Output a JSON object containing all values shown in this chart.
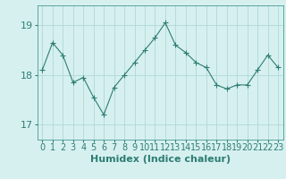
{
  "x": [
    0,
    1,
    2,
    3,
    4,
    5,
    6,
    7,
    8,
    9,
    10,
    11,
    12,
    13,
    14,
    15,
    16,
    17,
    18,
    19,
    20,
    21,
    22,
    23
  ],
  "y": [
    18.1,
    18.65,
    18.4,
    17.85,
    17.95,
    17.55,
    17.2,
    17.75,
    18.0,
    18.25,
    18.5,
    18.75,
    19.05,
    18.6,
    18.45,
    18.25,
    18.15,
    17.8,
    17.72,
    17.8,
    17.8,
    18.1,
    18.4,
    18.15
  ],
  "line_color": "#2e7d72",
  "marker": "+",
  "bg_color": "#d6f0f0",
  "grid_color": "#b0d8d8",
  "xlabel": "Humidex (Indice chaleur)",
  "yticks": [
    17,
    18,
    19
  ],
  "ylim": [
    16.7,
    19.4
  ],
  "xlim": [
    -0.5,
    23.5
  ],
  "axis_color": "#4a9990",
  "tick_color": "#2e7d72",
  "xlabel_color": "#2e7d72",
  "tick_fontsize": 7,
  "xlabel_fontsize": 8
}
